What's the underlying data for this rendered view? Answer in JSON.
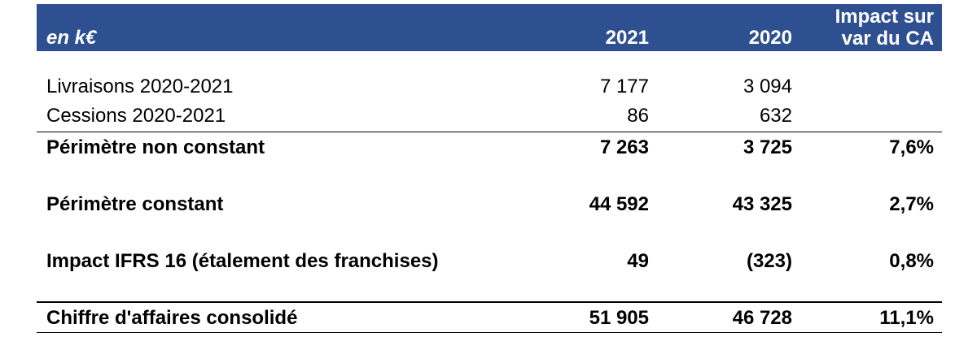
{
  "header": {
    "unit": "en k€",
    "col_2021": "2021",
    "col_2020": "2020",
    "col_impact_line1": "Impact sur",
    "col_impact_line2": "var du CA",
    "bg_color": "#2e5090"
  },
  "rows": [
    {
      "label": "Livraisons 2020-2021",
      "v2021": "7 177",
      "v2020": "3 094",
      "impact": ""
    },
    {
      "label": "Cessions 2020-2021",
      "v2021": "86",
      "v2020": "632",
      "impact": ""
    },
    {
      "label": "Périmètre non constant",
      "v2021": "7 263",
      "v2020": "3 725",
      "impact": "7,6%"
    },
    {
      "label": "Périmètre constant",
      "v2021": "44 592",
      "v2020": "43 325",
      "impact": "2,7%"
    },
    {
      "label": "Impact IFRS 16 (étalement des franchises)",
      "v2021": "49",
      "v2020": "(323)",
      "impact": "0,8%"
    },
    {
      "label": "Chiffre d'affaires consolidé",
      "v2021": "51 905",
      "v2020": "46 728",
      "impact": "11,1%"
    }
  ]
}
